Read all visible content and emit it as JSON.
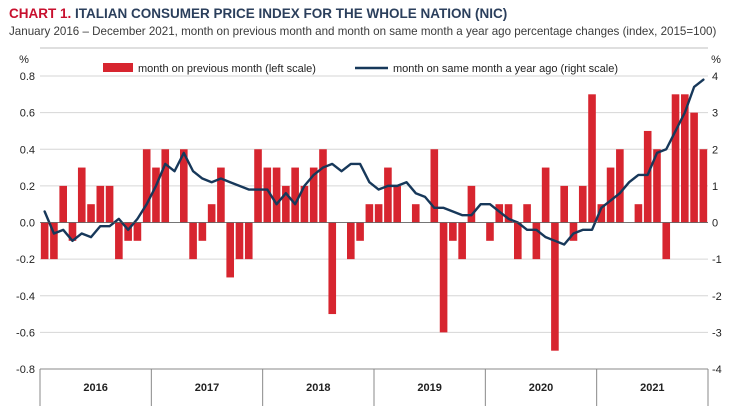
{
  "header": {
    "label": "CHART 1.",
    "title": "ITALIAN CONSUMER PRICE INDEX FOR THE WHOLE NATION (NIC)",
    "subtitle": "January 2016 – December 2021, month on previous month and month on same month a year ago percentage changes (index, 2015=100)"
  },
  "chart_data": {
    "type": "bar+line",
    "left_axis": {
      "unit": "%",
      "min": -0.8,
      "max": 0.8,
      "ticks": [
        "0.8",
        "0.6",
        "0.4",
        "0.2",
        "0.0",
        "-0.2",
        "-0.4",
        "-0.6",
        "-0.8"
      ]
    },
    "right_axis": {
      "unit": "%",
      "min": -4,
      "max": 4,
      "ticks": [
        "4",
        "3",
        "2",
        "1",
        "0",
        "-1",
        "-2",
        "-3",
        "-4"
      ]
    },
    "years": [
      "2016",
      "2017",
      "2018",
      "2019",
      "2020",
      "2021"
    ],
    "grid": "horizontal",
    "legend_position": "top",
    "series": [
      {
        "name": "month on previous month (left scale)",
        "kind": "bar",
        "axis": "left",
        "color": "#d7252f",
        "values": [
          -0.2,
          -0.2,
          0.2,
          -0.1,
          0.3,
          0.1,
          0.2,
          0.2,
          -0.2,
          -0.1,
          -0.1,
          0.4,
          0.3,
          0.4,
          0.0,
          0.4,
          -0.2,
          -0.1,
          0.1,
          0.3,
          -0.3,
          -0.2,
          -0.2,
          0.4,
          0.3,
          0.3,
          0.2,
          0.3,
          0.2,
          0.3,
          0.4,
          -0.5,
          0.0,
          -0.2,
          -0.1,
          0.1,
          0.1,
          0.3,
          0.2,
          0.0,
          0.1,
          0.0,
          0.4,
          -0.6,
          -0.1,
          -0.2,
          0.2,
          0.0,
          -0.1,
          0.1,
          0.1,
          -0.2,
          0.1,
          -0.2,
          0.3,
          -0.7,
          0.2,
          -0.1,
          0.2,
          0.7,
          0.1,
          0.3,
          0.4,
          0.0,
          0.1,
          0.5,
          0.4,
          -0.2,
          0.7,
          0.7,
          0.6,
          0.4
        ]
      },
      {
        "name": "month on same month a year ago (right scale)",
        "kind": "line",
        "axis": "right",
        "color": "#17385a",
        "values": [
          0.3,
          -0.3,
          -0.2,
          -0.5,
          -0.3,
          -0.4,
          -0.1,
          -0.1,
          0.1,
          -0.2,
          0.1,
          0.5,
          1.0,
          1.6,
          1.4,
          1.9,
          1.4,
          1.2,
          1.1,
          1.2,
          1.1,
          1.0,
          0.9,
          0.9,
          0.9,
          0.5,
          0.8,
          0.5,
          1.0,
          1.3,
          1.5,
          1.6,
          1.4,
          1.6,
          1.6,
          1.1,
          0.9,
          1.0,
          1.0,
          1.1,
          0.8,
          0.7,
          0.4,
          0.4,
          0.3,
          0.2,
          0.2,
          0.5,
          0.5,
          0.3,
          0.1,
          0.0,
          -0.2,
          -0.2,
          -0.4,
          -0.5,
          -0.6,
          -0.3,
          -0.2,
          -0.2,
          0.4,
          0.6,
          0.8,
          1.1,
          1.3,
          1.3,
          1.9,
          2.0,
          2.5,
          3.0,
          3.7,
          3.9
        ]
      }
    ]
  }
}
